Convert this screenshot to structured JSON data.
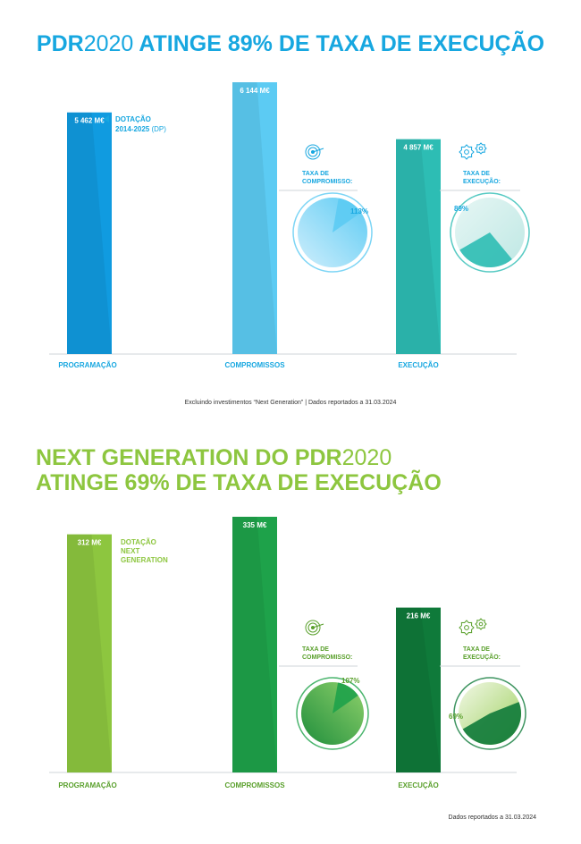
{
  "chart_data": [
    {
      "type": "bar",
      "title_bold": "PDR",
      "title_light": "2020",
      "title_rest": " ATINGE 89% DE TAXA DE EXECUÇÃO",
      "categories": [
        "PROGRAMAÇÃO",
        "COMPROMISSOS",
        "EXECUÇÃO"
      ],
      "values": [
        5462,
        6144,
        4857
      ],
      "value_labels": [
        "5 462 M€",
        "6 144 M€",
        "4 857 M€"
      ],
      "unit": "M€",
      "ylim": [
        0,
        6300
      ],
      "grid": false,
      "annotation": {
        "line1": "DOTAÇÃO",
        "line2": "2014-2025",
        "line2_suffix": " (DP)"
      },
      "rates": [
        {
          "label_line1": "TAXA DE",
          "label_line2": "COMPROMISSO:",
          "value": 113,
          "value_label": "113%",
          "icon": "target-icon"
        },
        {
          "label_line1": "TAXA DE",
          "label_line2": "EXECUÇÃO:",
          "value": 89,
          "value_label": "89%",
          "icon": "gears-icon"
        }
      ],
      "note": "Excluindo investimentos “Next Generation”   |   Dados reportados a 31.03.2024",
      "colors": [
        "#109be0",
        "#5ccbf3",
        "#2dbdb4"
      ]
    },
    {
      "type": "bar",
      "title_line1_bold": "NEXT GENERATION DO PDR",
      "title_line1_light": "2020",
      "title_line2": "ATINGE 69% DE TAXA DE EXECUÇÃO",
      "categories": [
        "PROGRAMAÇÃO",
        "COMPROMISSOS",
        "EXECUÇÃO"
      ],
      "values": [
        312,
        335,
        216
      ],
      "value_labels": [
        "312 M€",
        "335 M€",
        "216 M€"
      ],
      "unit": "M€",
      "ylim": [
        0,
        340
      ],
      "grid": false,
      "annotation": {
        "line1": "DOTAÇÃO",
        "line2": "NEXT",
        "line3": "GENERATION"
      },
      "rates": [
        {
          "label_line1": "TAXA DE",
          "label_line2": "COMPROMISSO:",
          "value": 107,
          "value_label": "107%",
          "icon": "target-icon"
        },
        {
          "label_line1": "TAXA DE",
          "label_line2": "EXECUÇÃO:",
          "value": 69,
          "value_label": "69%",
          "icon": "gears-icon"
        }
      ],
      "note": "Dados reportados a 31.03.2024",
      "colors": [
        "#8dc63f",
        "#1ea24a",
        "#0f7a3a"
      ]
    }
  ]
}
